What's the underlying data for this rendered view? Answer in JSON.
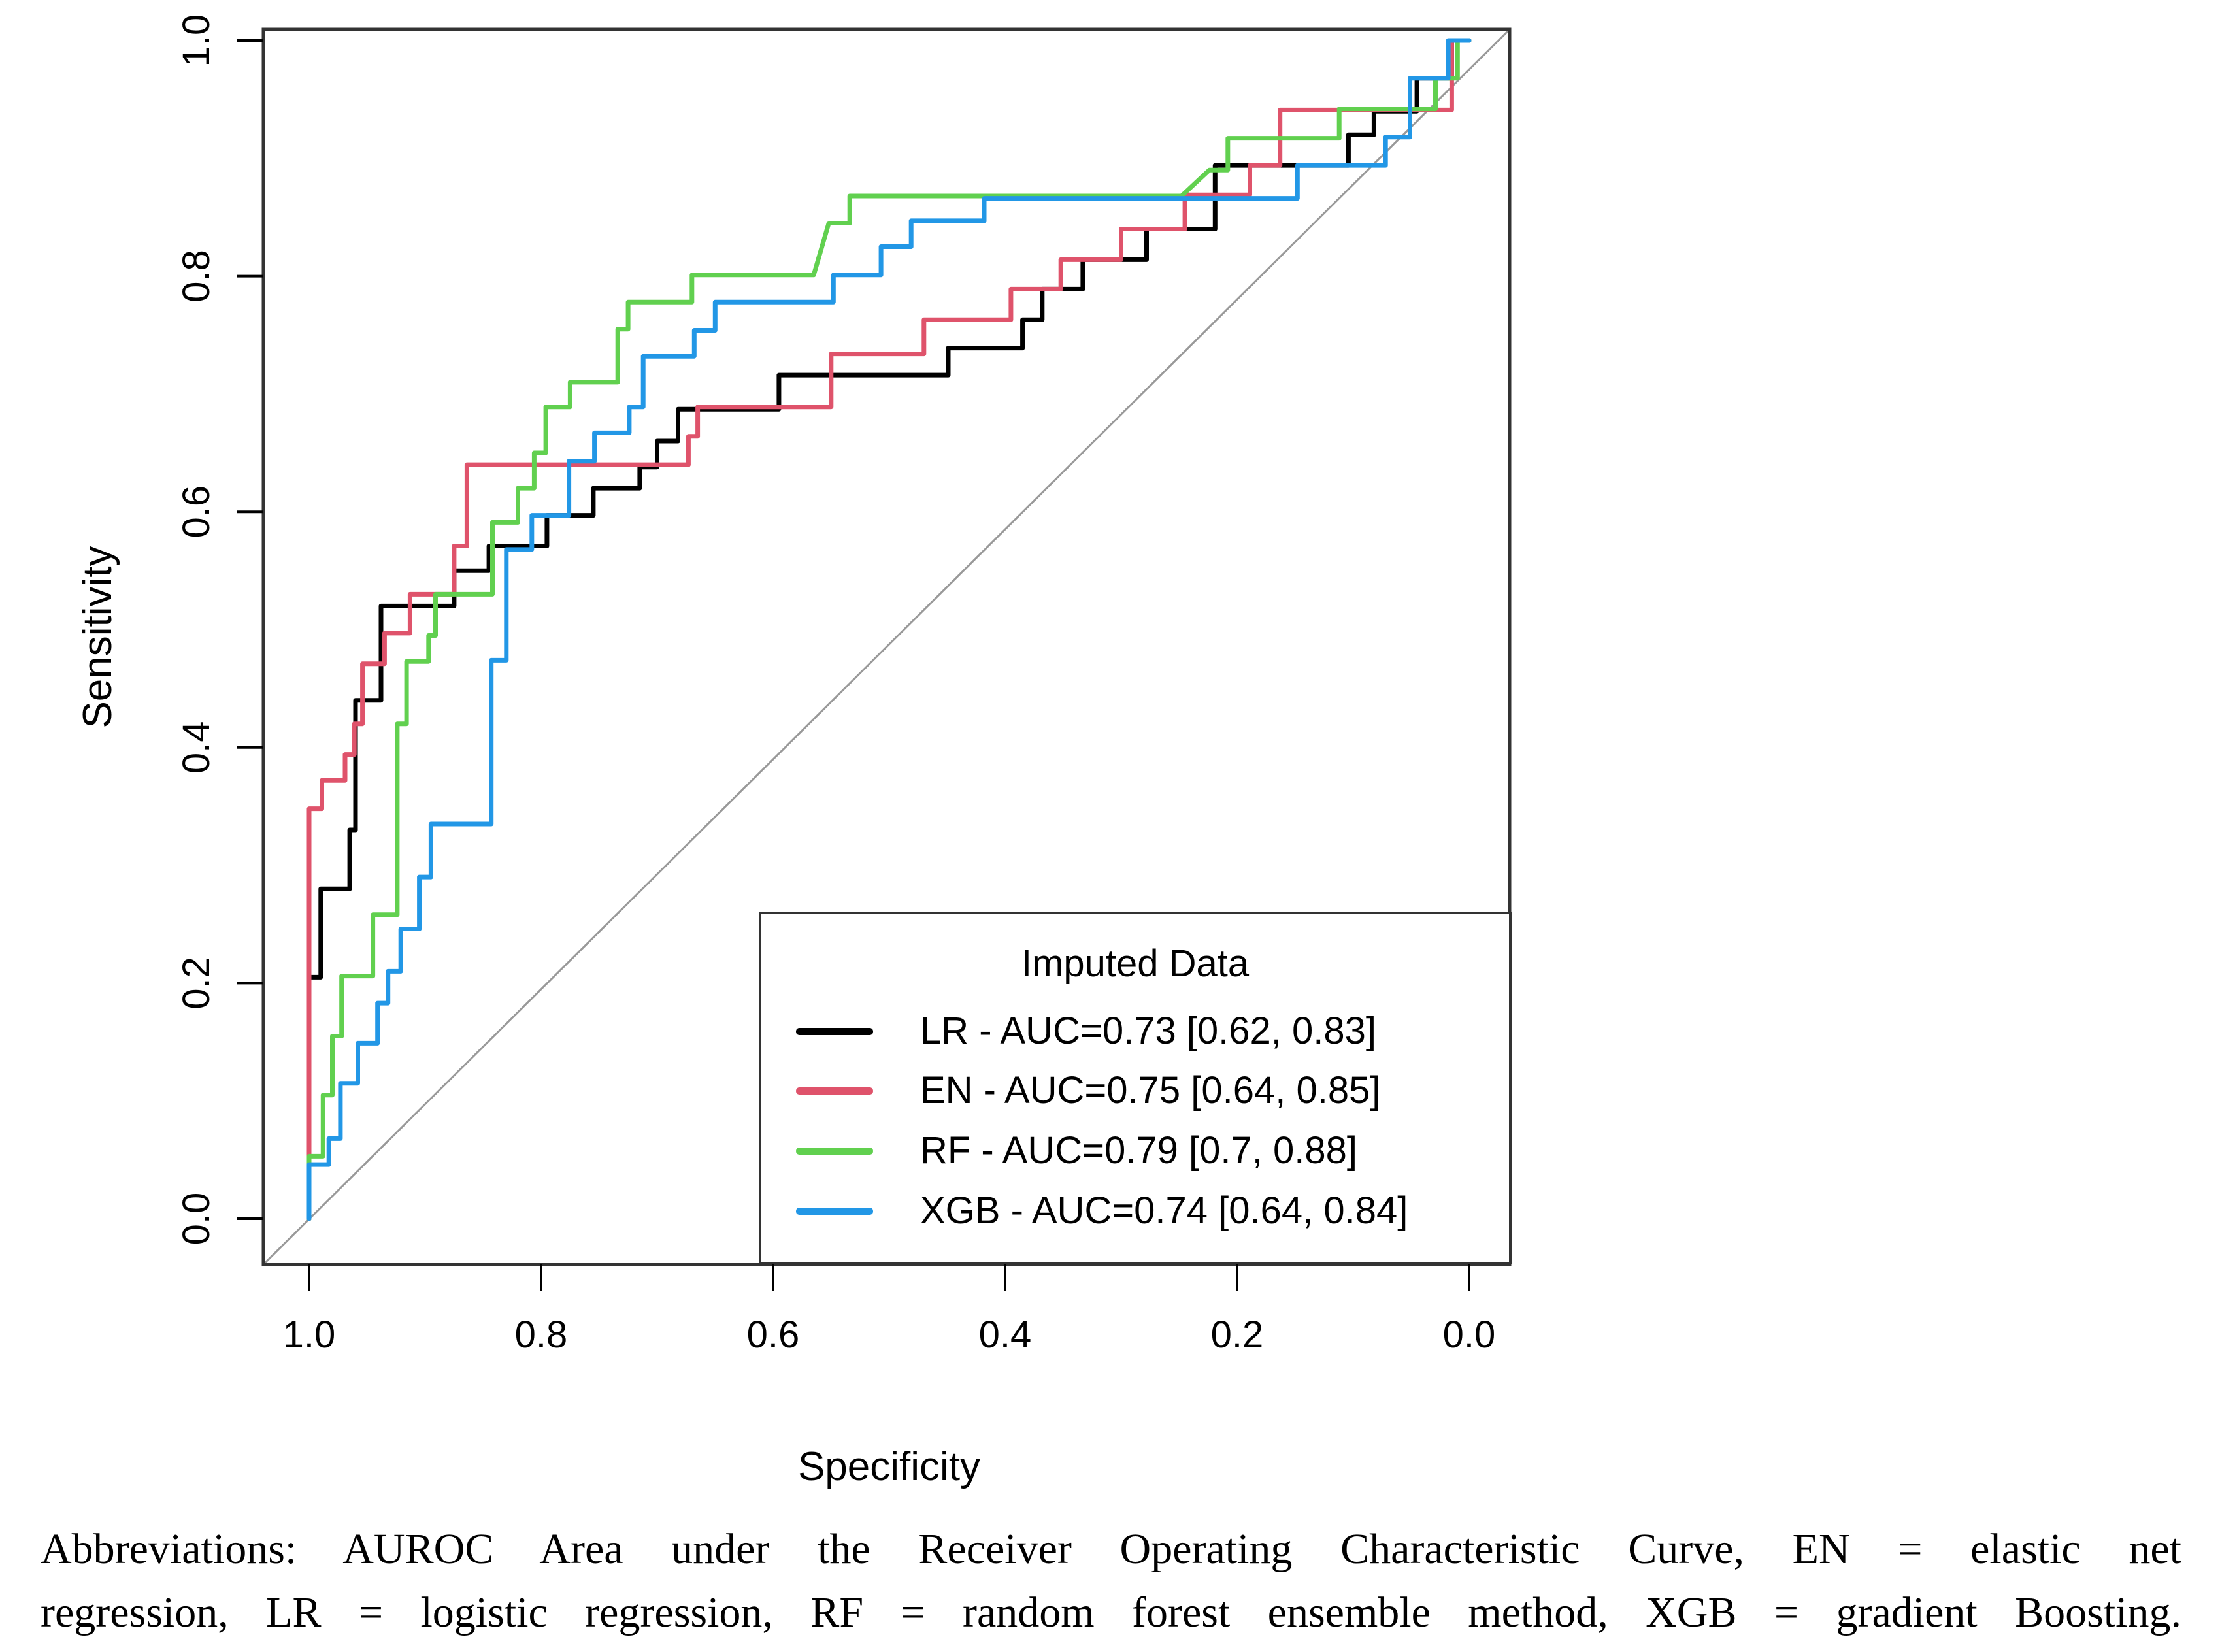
{
  "figure": {
    "caption_line1": "Abbreviations: AUROC Area under the Receiver Operating Characteristic Curve, EN = elastic net",
    "caption_line2": "regression, LR = logistic regression, RF = random forest ensemble method, XGB = gradient Boosting."
  },
  "chart_data": {
    "type": "line",
    "subtype": "roc-step-curves",
    "title": "",
    "xlabel": "Specificity",
    "ylabel": "Sensitivity",
    "x_tick_labels": [
      "1.0",
      "0.8",
      "0.6",
      "0.4",
      "0.2",
      "0.0"
    ],
    "y_tick_labels_top_to_bottom": [
      "1.0",
      "0.8",
      "0.6",
      "0.4",
      "0.2",
      "0.0"
    ],
    "xlim": [
      1.0,
      0.0
    ],
    "ylim": [
      0.0,
      1.0
    ],
    "x_axis_note": "x axis is specificity decreasing from 1.0 to 0.0 (curves stored as [1-specificity, sensitivity])",
    "grid": false,
    "diagonal_reference_line": {
      "present": true,
      "color": "#999999"
    },
    "colors": {
      "lr": "#000000",
      "en": "#DF536B",
      "rf": "#61D04F",
      "xgb": "#2297E6",
      "axis": "#333333",
      "diagonal": "#999999",
      "background": "#ffffff"
    },
    "legend": {
      "title": "Imputed Data",
      "position": "bottom-right",
      "entries": [
        {
          "name": "LR",
          "label": "LR - AUC=0.73 [0.62, 0.83]",
          "color": "#000000"
        },
        {
          "name": "EN",
          "label": "EN - AUC=0.75 [0.64, 0.85]",
          "color": "#DF536B"
        },
        {
          "name": "RF",
          "label": "RF - AUC=0.79 [0.7, 0.88]",
          "color": "#61D04F"
        },
        {
          "name": "XGB",
          "label": "XGB - AUC=0.74 [0.64, 0.84]",
          "color": "#2297E6"
        }
      ]
    },
    "series": [
      {
        "name": "LR",
        "model": "logistic regression",
        "auc": 0.73,
        "ci": [
          0.62,
          0.83
        ],
        "color": "#000000",
        "points_fpr_tpr": [
          [
            0,
            0
          ],
          [
            0,
            0.205
          ],
          [
            0.01,
            0.205
          ],
          [
            0.01,
            0.28
          ],
          [
            0.035,
            0.28
          ],
          [
            0.035,
            0.33
          ],
          [
            0.04,
            0.33
          ],
          [
            0.04,
            0.44
          ],
          [
            0.062,
            0.44
          ],
          [
            0.062,
            0.52
          ],
          [
            0.125,
            0.52
          ],
          [
            0.125,
            0.55
          ],
          [
            0.155,
            0.55
          ],
          [
            0.155,
            0.571
          ],
          [
            0.205,
            0.571
          ],
          [
            0.205,
            0.597
          ],
          [
            0.245,
            0.597
          ],
          [
            0.245,
            0.62
          ],
          [
            0.285,
            0.62
          ],
          [
            0.285,
            0.638
          ],
          [
            0.3,
            0.638
          ],
          [
            0.3,
            0.66
          ],
          [
            0.318,
            0.66
          ],
          [
            0.318,
            0.687
          ],
          [
            0.405,
            0.687
          ],
          [
            0.405,
            0.716
          ],
          [
            0.551,
            0.716
          ],
          [
            0.551,
            0.739
          ],
          [
            0.615,
            0.739
          ],
          [
            0.615,
            0.763
          ],
          [
            0.632,
            0.763
          ],
          [
            0.632,
            0.789
          ],
          [
            0.667,
            0.789
          ],
          [
            0.667,
            0.814
          ],
          [
            0.722,
            0.814
          ],
          [
            0.722,
            0.84
          ],
          [
            0.781,
            0.84
          ],
          [
            0.781,
            0.894
          ],
          [
            0.896,
            0.894
          ],
          [
            0.896,
            0.92
          ],
          [
            0.918,
            0.92
          ],
          [
            0.918,
            0.94
          ],
          [
            0.955,
            0.94
          ],
          [
            0.955,
            0.968
          ],
          [
            0.985,
            0.968
          ],
          [
            0.985,
            1
          ],
          [
            1,
            1
          ]
        ]
      },
      {
        "name": "EN",
        "model": "elastic net regression",
        "auc": 0.75,
        "ci": [
          0.64,
          0.85
        ],
        "color": "#DF536B",
        "points_fpr_tpr": [
          [
            0,
            0
          ],
          [
            0,
            0.348
          ],
          [
            0.011,
            0.348
          ],
          [
            0.011,
            0.372
          ],
          [
            0.031,
            0.372
          ],
          [
            0.031,
            0.394
          ],
          [
            0.039,
            0.394
          ],
          [
            0.039,
            0.42
          ],
          [
            0.046,
            0.42
          ],
          [
            0.046,
            0.471
          ],
          [
            0.065,
            0.471
          ],
          [
            0.065,
            0.497
          ],
          [
            0.087,
            0.497
          ],
          [
            0.087,
            0.53
          ],
          [
            0.125,
            0.53
          ],
          [
            0.125,
            0.571
          ],
          [
            0.136,
            0.571
          ],
          [
            0.136,
            0.64
          ],
          [
            0.327,
            0.64
          ],
          [
            0.327,
            0.664
          ],
          [
            0.335,
            0.664
          ],
          [
            0.335,
            0.689
          ],
          [
            0.45,
            0.689
          ],
          [
            0.45,
            0.734
          ],
          [
            0.53,
            0.734
          ],
          [
            0.53,
            0.763
          ],
          [
            0.605,
            0.763
          ],
          [
            0.605,
            0.789
          ],
          [
            0.648,
            0.789
          ],
          [
            0.648,
            0.814
          ],
          [
            0.7,
            0.814
          ],
          [
            0.7,
            0.84
          ],
          [
            0.755,
            0.84
          ],
          [
            0.755,
            0.869
          ],
          [
            0.811,
            0.869
          ],
          [
            0.811,
            0.894
          ],
          [
            0.837,
            0.894
          ],
          [
            0.837,
            0.941
          ],
          [
            0.985,
            0.941
          ],
          [
            0.985,
            1
          ],
          [
            1,
            1
          ]
        ]
      },
      {
        "name": "RF",
        "model": "random forest ensemble method",
        "auc": 0.79,
        "ci": [
          0.7,
          0.88
        ],
        "color": "#61D04F",
        "points_fpr_tpr": [
          [
            0,
            0
          ],
          [
            0,
            0.053
          ],
          [
            0.012,
            0.053
          ],
          [
            0.012,
            0.105
          ],
          [
            0.02,
            0.105
          ],
          [
            0.02,
            0.155
          ],
          [
            0.028,
            0.155
          ],
          [
            0.028,
            0.206
          ],
          [
            0.055,
            0.206
          ],
          [
            0.055,
            0.258
          ],
          [
            0.076,
            0.258
          ],
          [
            0.076,
            0.42
          ],
          [
            0.084,
            0.42
          ],
          [
            0.084,
            0.473
          ],
          [
            0.103,
            0.473
          ],
          [
            0.103,
            0.495
          ],
          [
            0.109,
            0.495
          ],
          [
            0.109,
            0.53
          ],
          [
            0.158,
            0.53
          ],
          [
            0.158,
            0.591
          ],
          [
            0.18,
            0.591
          ],
          [
            0.18,
            0.62
          ],
          [
            0.194,
            0.62
          ],
          [
            0.194,
            0.65
          ],
          [
            0.204,
            0.65
          ],
          [
            0.204,
            0.689
          ],
          [
            0.225,
            0.689
          ],
          [
            0.225,
            0.71
          ],
          [
            0.266,
            0.71
          ],
          [
            0.266,
            0.755
          ],
          [
            0.275,
            0.755
          ],
          [
            0.275,
            0.778
          ],
          [
            0.33,
            0.778
          ],
          [
            0.33,
            0.801
          ],
          [
            0.435,
            0.801
          ],
          [
            0.448,
            0.845
          ],
          [
            0.466,
            0.845
          ],
          [
            0.466,
            0.868
          ],
          [
            0.752,
            0.868
          ],
          [
            0.776,
            0.89
          ],
          [
            0.792,
            0.89
          ],
          [
            0.792,
            0.917
          ],
          [
            0.888,
            0.917
          ],
          [
            0.888,
            0.942
          ],
          [
            0.971,
            0.942
          ],
          [
            0.971,
            0.968
          ],
          [
            0.99,
            0.968
          ],
          [
            0.99,
            1
          ],
          [
            1,
            1
          ]
        ]
      },
      {
        "name": "XGB",
        "model": "gradient Boosting",
        "auc": 0.74,
        "ci": [
          0.64,
          0.84
        ],
        "color": "#2297E6",
        "points_fpr_tpr": [
          [
            0,
            0
          ],
          [
            0,
            0.046
          ],
          [
            0.017,
            0.046
          ],
          [
            0.017,
            0.068
          ],
          [
            0.027,
            0.068
          ],
          [
            0.027,
            0.115
          ],
          [
            0.042,
            0.115
          ],
          [
            0.042,
            0.149
          ],
          [
            0.059,
            0.149
          ],
          [
            0.059,
            0.183
          ],
          [
            0.068,
            0.183
          ],
          [
            0.068,
            0.21
          ],
          [
            0.079,
            0.21
          ],
          [
            0.079,
            0.246
          ],
          [
            0.095,
            0.246
          ],
          [
            0.095,
            0.29
          ],
          [
            0.105,
            0.29
          ],
          [
            0.105,
            0.335
          ],
          [
            0.157,
            0.335
          ],
          [
            0.157,
            0.474
          ],
          [
            0.17,
            0.474
          ],
          [
            0.17,
            0.568
          ],
          [
            0.192,
            0.568
          ],
          [
            0.192,
            0.597
          ],
          [
            0.224,
            0.597
          ],
          [
            0.224,
            0.643
          ],
          [
            0.246,
            0.643
          ],
          [
            0.246,
            0.667
          ],
          [
            0.276,
            0.667
          ],
          [
            0.276,
            0.689
          ],
          [
            0.288,
            0.689
          ],
          [
            0.288,
            0.732
          ],
          [
            0.332,
            0.732
          ],
          [
            0.332,
            0.754
          ],
          [
            0.35,
            0.754
          ],
          [
            0.35,
            0.778
          ],
          [
            0.452,
            0.778
          ],
          [
            0.452,
            0.801
          ],
          [
            0.493,
            0.801
          ],
          [
            0.493,
            0.825
          ],
          [
            0.519,
            0.825
          ],
          [
            0.519,
            0.847
          ],
          [
            0.582,
            0.847
          ],
          [
            0.582,
            0.866
          ],
          [
            0.852,
            0.866
          ],
          [
            0.852,
            0.894
          ],
          [
            0.928,
            0.894
          ],
          [
            0.928,
            0.918
          ],
          [
            0.949,
            0.918
          ],
          [
            0.949,
            0.968
          ],
          [
            0.982,
            0.968
          ],
          [
            0.982,
            1
          ],
          [
            1,
            1
          ]
        ]
      }
    ]
  }
}
